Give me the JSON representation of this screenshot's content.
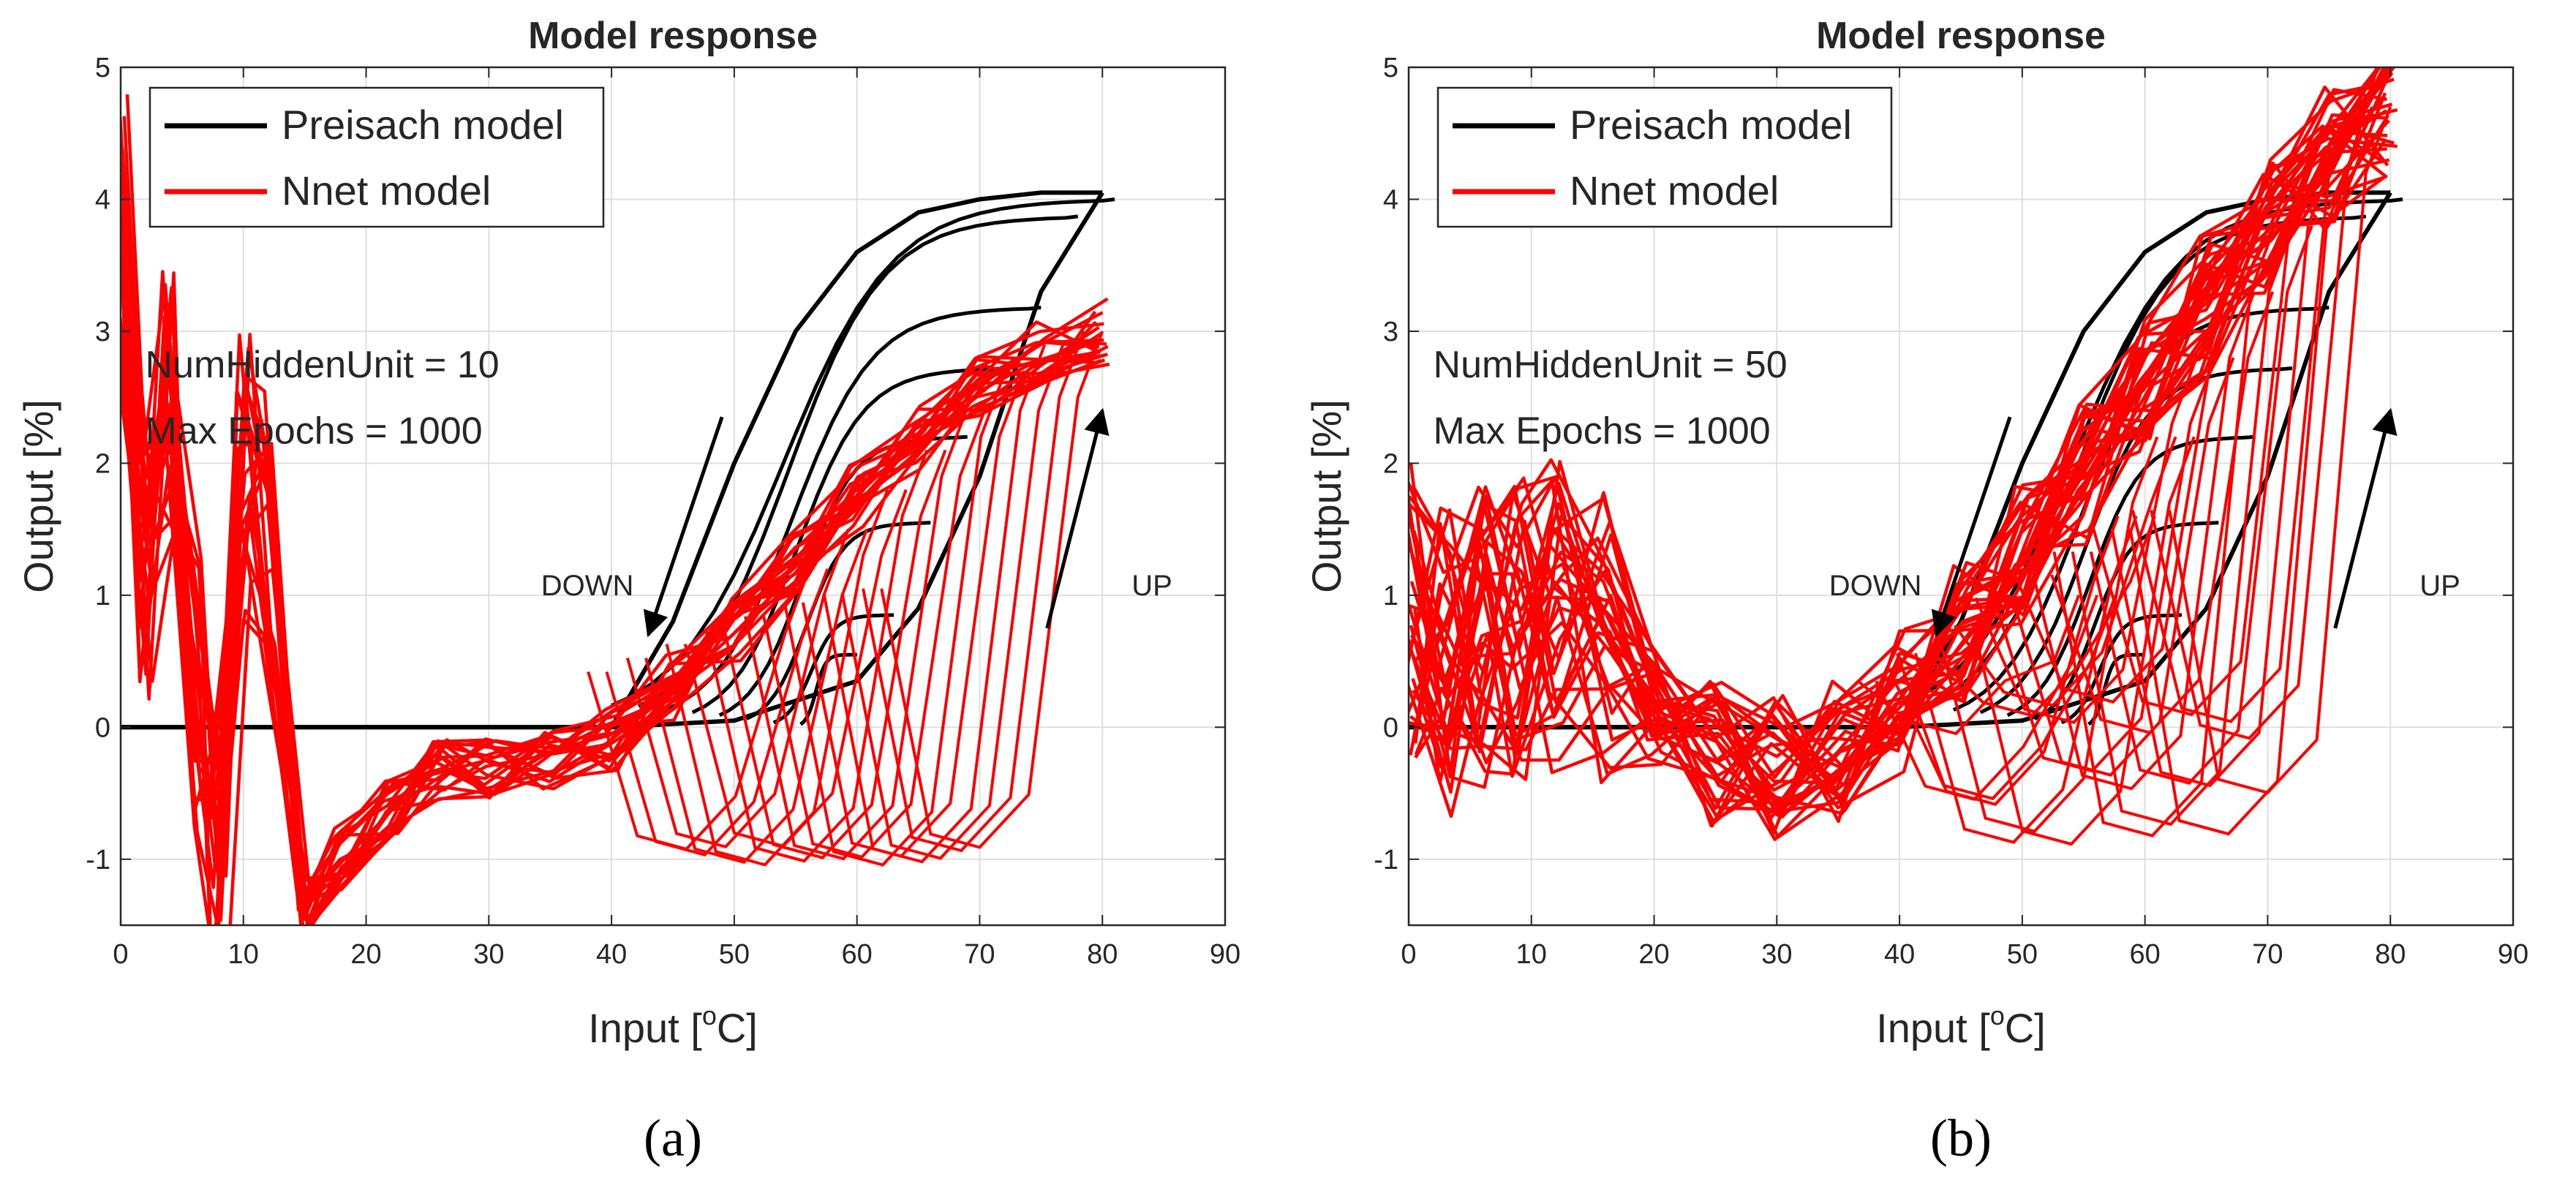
{
  "chart_data": [
    {
      "type": "line",
      "panel_label": "(a)",
      "title": "Model response",
      "xlabel": "Input [",
      "xlabel_sup": "o",
      "xlabel_suffix": "C]",
      "ylabel": "Output [%]",
      "xlim": [
        0,
        90
      ],
      "ylim": [
        -1.5,
        5
      ],
      "xticks": [
        0,
        10,
        20,
        30,
        40,
        50,
        60,
        70,
        80,
        90
      ],
      "yticks": [
        -1,
        0,
        1,
        2,
        3,
        4,
        5
      ],
      "grid": true,
      "legend": {
        "placement": "top-left",
        "entries": [
          "Preisach model",
          "Nnet model"
        ]
      },
      "annotation_lines": [
        "NumHiddenUnit = 10",
        "Max Epochs = 1000"
      ],
      "arrows": [
        {
          "label": "DOWN",
          "from": [
            49,
            2.35
          ],
          "to": [
            43,
            0.7
          ]
        },
        {
          "label": "UP",
          "from": [
            75.5,
            0.75
          ],
          "to": [
            80,
            2.4
          ]
        }
      ],
      "series": [
        {
          "name": "Preisach model",
          "color": "#000000",
          "major_loop_up": {
            "x": [
              0,
              10,
              20,
              30,
              40,
              50,
              60,
              65,
              70,
              75,
              80
            ],
            "y": [
              0,
              0,
              0,
              0,
              0,
              0.05,
              0.35,
              0.9,
              1.9,
              3.3,
              4.05
            ]
          },
          "major_loop_down": {
            "x": [
              80,
              75,
              70,
              65,
              60,
              55,
              50,
              45,
              40,
              30,
              20,
              10,
              0
            ],
            "y": [
              4.05,
              4.05,
              4.0,
              3.9,
              3.6,
              3.0,
              2.0,
              0.8,
              0,
              0,
              0,
              0,
              0
            ]
          },
          "reversal_levels": [
            4.0,
            3.87,
            3.18,
            2.72,
            2.2,
            1.55,
            0.85,
            0.55
          ]
        },
        {
          "name": "Nnet model",
          "color": "#ff0000",
          "x": [
            0,
            2,
            4,
            6,
            8,
            10,
            12,
            15,
            18,
            22,
            26,
            30,
            35,
            40,
            45,
            50,
            55,
            60,
            65,
            70,
            75,
            80
          ],
          "y": [
            3.8,
            1.2,
            2.5,
            0.2,
            -1.2,
            1.9,
            1.5,
            -1.4,
            -1.0,
            -0.6,
            -0.3,
            -0.3,
            -0.25,
            -0.1,
            0.3,
            0.75,
            1.25,
            1.75,
            2.2,
            2.6,
            2.85,
            3.0
          ],
          "loop_levels": [
            3.0,
            2.9,
            2.7,
            2.4,
            2.1,
            1.8,
            1.5,
            1.2
          ]
        }
      ]
    },
    {
      "type": "line",
      "panel_label": "(b)",
      "title": "Model response",
      "xlabel": "Input [",
      "xlabel_sup": "o",
      "xlabel_suffix": "C]",
      "ylabel": "Output [%]",
      "xlim": [
        0,
        90
      ],
      "ylim": [
        -1.5,
        5
      ],
      "xticks": [
        0,
        10,
        20,
        30,
        40,
        50,
        60,
        70,
        80,
        90
      ],
      "yticks": [
        -1,
        0,
        1,
        2,
        3,
        4,
        5
      ],
      "grid": true,
      "legend": {
        "placement": "top-left",
        "entries": [
          "Preisach model",
          "Nnet model"
        ]
      },
      "annotation_lines": [
        "NumHiddenUnit = 50",
        "Max Epochs = 1000"
      ],
      "arrows": [
        {
          "label": "DOWN",
          "from": [
            49,
            2.35
          ],
          "to": [
            43,
            0.7
          ]
        },
        {
          "label": "UP",
          "from": [
            75.5,
            0.75
          ],
          "to": [
            80,
            2.4
          ]
        }
      ],
      "series": [
        {
          "name": "Preisach model",
          "color": "#000000",
          "major_loop_up": {
            "x": [
              0,
              10,
              20,
              30,
              40,
              50,
              60,
              65,
              70,
              75,
              80
            ],
            "y": [
              0,
              0,
              0,
              0,
              0,
              0.05,
              0.35,
              0.9,
              1.9,
              3.3,
              4.05
            ]
          },
          "major_loop_down": {
            "x": [
              80,
              75,
              70,
              65,
              60,
              55,
              50,
              45,
              40,
              30,
              20,
              10,
              0
            ],
            "y": [
              4.05,
              4.05,
              4.0,
              3.9,
              3.6,
              3.0,
              2.0,
              0.8,
              0,
              0,
              0,
              0,
              0
            ]
          },
          "reversal_levels": [
            4.0,
            3.87,
            3.18,
            2.72,
            2.2,
            1.55,
            0.85,
            0.55
          ]
        },
        {
          "name": "Nnet model",
          "color": "#ff0000",
          "x": [
            0,
            3,
            6,
            9,
            12,
            16,
            20,
            25,
            30,
            35,
            40,
            45,
            50,
            55,
            60,
            65,
            70,
            75,
            80
          ],
          "y": [
            0.8,
            0.5,
            0.7,
            0.8,
            0.85,
            0.6,
            0.2,
            -0.2,
            -0.3,
            -0.2,
            0.2,
            0.7,
            1.3,
            1.9,
            2.6,
            3.2,
            3.8,
            4.3,
            4.7
          ],
          "loop_levels": [
            4.7,
            4.3,
            3.8,
            3.3,
            2.8,
            2.2,
            1.6,
            1.0
          ]
        }
      ]
    }
  ]
}
